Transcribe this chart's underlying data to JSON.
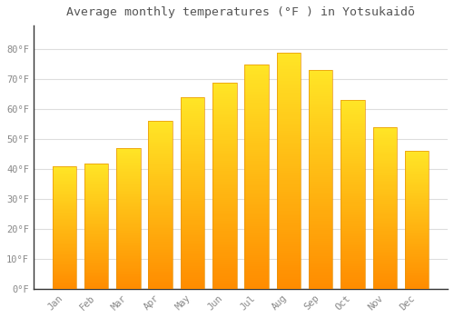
{
  "title": "Average monthly temperatures (°F ) in Yotsukaidō",
  "months": [
    "Jan",
    "Feb",
    "Mar",
    "Apr",
    "May",
    "Jun",
    "Jul",
    "Aug",
    "Sep",
    "Oct",
    "Nov",
    "Dec"
  ],
  "values": [
    41,
    42,
    47,
    56,
    64,
    69,
    75,
    79,
    73,
    63,
    54,
    46
  ],
  "bar_color_face": "#FFA500",
  "bar_color_light": "#FFD966",
  "background_color": "#FFFFFF",
  "grid_color": "#DDDDDD",
  "tick_label_color": "#888888",
  "title_color": "#555555",
  "axis_color": "#333333",
  "ylim": [
    0,
    88
  ],
  "yticks": [
    0,
    10,
    20,
    30,
    40,
    50,
    60,
    70,
    80
  ],
  "ytick_labels": [
    "0°F",
    "10°F",
    "20°F",
    "30°F",
    "40°F",
    "50°F",
    "60°F",
    "70°F",
    "80°F"
  ]
}
